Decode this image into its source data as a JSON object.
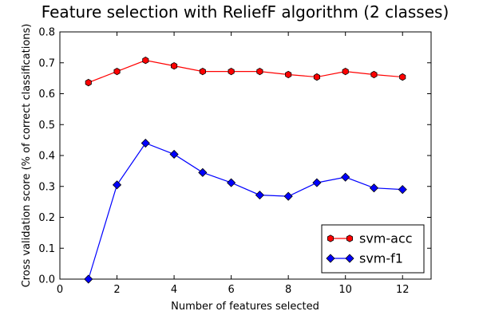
{
  "chart_data": {
    "type": "line",
    "title": "Feature selection with ReliefF algorithm (2 classes)",
    "xlabel": "Number of features selected",
    "ylabel": "Cross validation score (% of correct classifications)",
    "xlim": [
      0,
      13
    ],
    "ylim": [
      0.0,
      0.8
    ],
    "x_ticks": [
      0,
      2,
      4,
      6,
      8,
      10,
      12
    ],
    "y_ticks": [
      0.0,
      0.1,
      0.2,
      0.3,
      0.4,
      0.5,
      0.6,
      0.7,
      0.8
    ],
    "x_tick_labels": [
      "0",
      "2",
      "4",
      "6",
      "8",
      "10",
      "12"
    ],
    "y_tick_labels": [
      "0.0",
      "0.1",
      "0.2",
      "0.3",
      "0.4",
      "0.5",
      "0.6",
      "0.7",
      "0.8"
    ],
    "grid": false,
    "legend_position": "bottom-right",
    "x": [
      1,
      2,
      3,
      4,
      5,
      6,
      7,
      8,
      9,
      10,
      11,
      12
    ],
    "series": [
      {
        "name": "svm-acc",
        "color": "#ff0000",
        "marker": "hexagon",
        "values": [
          0.636,
          0.672,
          0.708,
          0.69,
          0.672,
          0.672,
          0.672,
          0.662,
          0.654,
          0.672,
          0.662,
          0.654
        ]
      },
      {
        "name": "svm-f1",
        "color": "#0000ff",
        "marker": "diamond",
        "values": [
          0.0,
          0.305,
          0.44,
          0.404,
          0.345,
          0.312,
          0.272,
          0.268,
          0.312,
          0.33,
          0.295,
          0.29
        ]
      }
    ]
  }
}
